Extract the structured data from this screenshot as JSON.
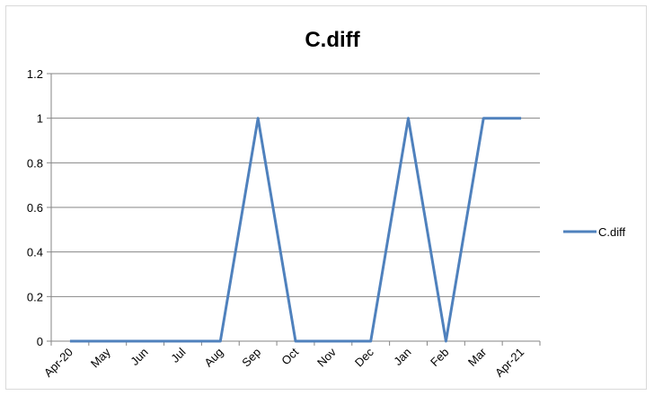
{
  "chart_data": {
    "type": "line",
    "title": "C.diff",
    "categories": [
      "Apr-20",
      "May",
      "Jun",
      "Jul",
      "Aug",
      "Sep",
      "Oct",
      "Nov",
      "Dec",
      "Jan",
      "Feb",
      "Mar",
      "Apr-21"
    ],
    "series": [
      {
        "name": "C.diff",
        "values": [
          0,
          0,
          0,
          0,
          0,
          1,
          0,
          0,
          0,
          1,
          0,
          1,
          1
        ]
      }
    ],
    "ylim": [
      0,
      1.2
    ],
    "yticks": [
      0,
      0.2,
      0.4,
      0.6,
      0.8,
      1,
      1.2
    ],
    "ytick_labels": [
      "0",
      "0.2",
      "0.4",
      "0.6",
      "0.8",
      "1",
      "1.2"
    ],
    "grid": true,
    "legend_position": "right",
    "colors": {
      "series": "#4f81bd",
      "grid": "#868686",
      "axis": "#868686"
    }
  }
}
